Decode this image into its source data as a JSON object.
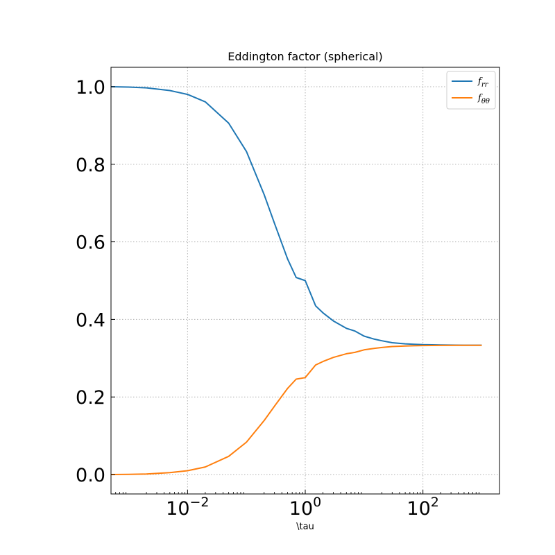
{
  "chart_data": {
    "type": "line",
    "title": "Eddington factor (spherical)",
    "xlabel": "\\tau",
    "ylabel": "",
    "xscale": "log",
    "xlim": [
      0.0005,
      2000
    ],
    "ylim": [
      -0.05,
      1.05
    ],
    "grid": true,
    "legend_position": "top-right",
    "xticks": [
      {
        "value": 0.01,
        "base": "10",
        "exp": "−2"
      },
      {
        "value": 1,
        "base": "10",
        "exp": "0"
      },
      {
        "value": 100,
        "base": "10",
        "exp": "2"
      }
    ],
    "yticks": [
      {
        "value": 0.0,
        "label": "0.0"
      },
      {
        "value": 0.2,
        "label": "0.2"
      },
      {
        "value": 0.4,
        "label": "0.4"
      },
      {
        "value": 0.6,
        "label": "0.6"
      },
      {
        "value": 0.8,
        "label": "0.8"
      },
      {
        "value": 1.0,
        "label": "1.0"
      }
    ],
    "series": [
      {
        "name": "f_rr",
        "legend_main": "f",
        "legend_sub": "rr",
        "color": "#1f77b4",
        "x": [
          0.0005,
          0.001,
          0.002,
          0.005,
          0.01,
          0.02,
          0.05,
          0.1,
          0.2,
          0.3,
          0.5,
          0.7,
          1,
          1.5,
          2,
          3,
          5,
          7,
          10,
          15,
          20,
          30,
          50,
          70,
          100,
          200,
          500,
          1000
        ],
        "y": [
          1.0,
          0.999,
          0.997,
          0.99,
          0.98,
          0.961,
          0.906,
          0.833,
          0.722,
          0.648,
          0.556,
          0.508,
          0.5,
          0.435,
          0.417,
          0.396,
          0.377,
          0.37,
          0.357,
          0.349,
          0.345,
          0.34,
          0.337,
          0.336,
          0.335,
          0.334,
          0.3335,
          0.3334
        ]
      },
      {
        "name": "f_θθ",
        "legend_main": "f",
        "legend_sub": "θθ",
        "color": "#ff7f0e",
        "x": [
          0.0005,
          0.001,
          0.002,
          0.005,
          0.01,
          0.02,
          0.05,
          0.1,
          0.2,
          0.3,
          0.5,
          0.7,
          1,
          1.5,
          2,
          3,
          5,
          7,
          10,
          15,
          20,
          30,
          50,
          70,
          100,
          200,
          500,
          1000
        ],
        "y": [
          0.0,
          0.0005,
          0.0015,
          0.005,
          0.01,
          0.0195,
          0.047,
          0.0835,
          0.139,
          0.176,
          0.222,
          0.246,
          0.25,
          0.2825,
          0.2915,
          0.302,
          0.3115,
          0.315,
          0.3215,
          0.3255,
          0.3275,
          0.33,
          0.3315,
          0.332,
          0.3325,
          0.333,
          0.3332,
          0.3333
        ]
      }
    ]
  }
}
